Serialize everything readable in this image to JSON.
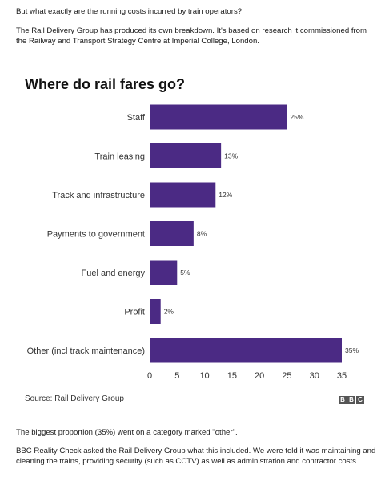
{
  "article": {
    "intro": "But what exactly are the running costs incurred by train operators?",
    "para2": "The Rail Delivery Group has produced its own breakdown. It's based on research it commissioned from the Railway and Transport Strategy Centre at Imperial College, London.",
    "para3": "The biggest proportion (35%) went on a category marked \"other\".",
    "para4": "BBC Reality Check asked the Rail Delivery Group what this included. We were told it was maintaining and cleaning the trains, providing security (such as CCTV) as well as administration and contractor costs."
  },
  "chart_data": {
    "type": "bar",
    "orientation": "horizontal",
    "title": "Where do rail fares go?",
    "categories": [
      "Staff",
      "Train leasing",
      "Track and infrastructure",
      "Payments to government",
      "Fuel and energy",
      "Profit",
      "Other (incl track maintenance)"
    ],
    "values": [
      25,
      13,
      12,
      8,
      5,
      2,
      35
    ],
    "data_labels": [
      "25%",
      "13%",
      "12%",
      "8%",
      "5%",
      "2%",
      "35%"
    ],
    "xlim": [
      0,
      35
    ],
    "xticks": [
      0,
      5,
      10,
      15,
      20,
      25,
      30,
      35
    ],
    "grid": false,
    "bar_color": "#4b2a84",
    "source": "Source: Rail Delivery Group"
  },
  "branding": {
    "logo_letters": [
      "B",
      "B",
      "C"
    ]
  }
}
